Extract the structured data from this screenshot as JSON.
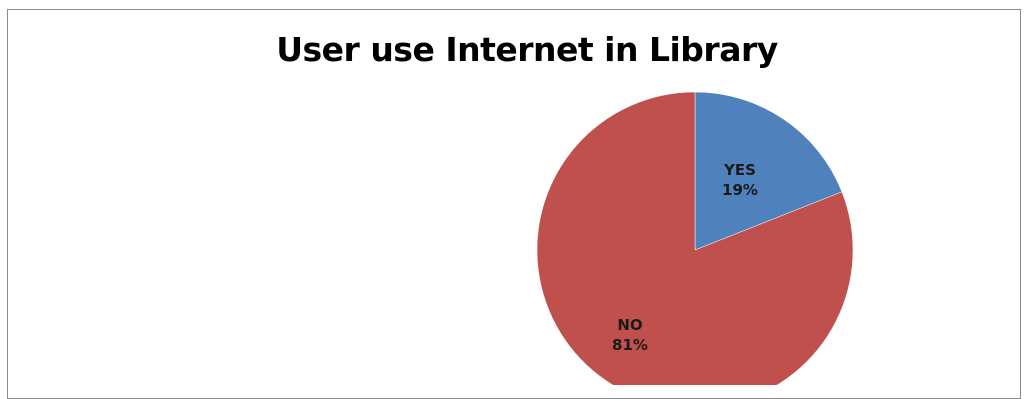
{
  "chart_data": {
    "type": "pie",
    "title": "User use Internet in Library",
    "categories": [
      "YES",
      "NO"
    ],
    "values": [
      19,
      81
    ],
    "labels": [
      "19%",
      "81%"
    ],
    "colors": [
      "#4f81bd",
      "#c0504d"
    ],
    "legend": "none"
  }
}
